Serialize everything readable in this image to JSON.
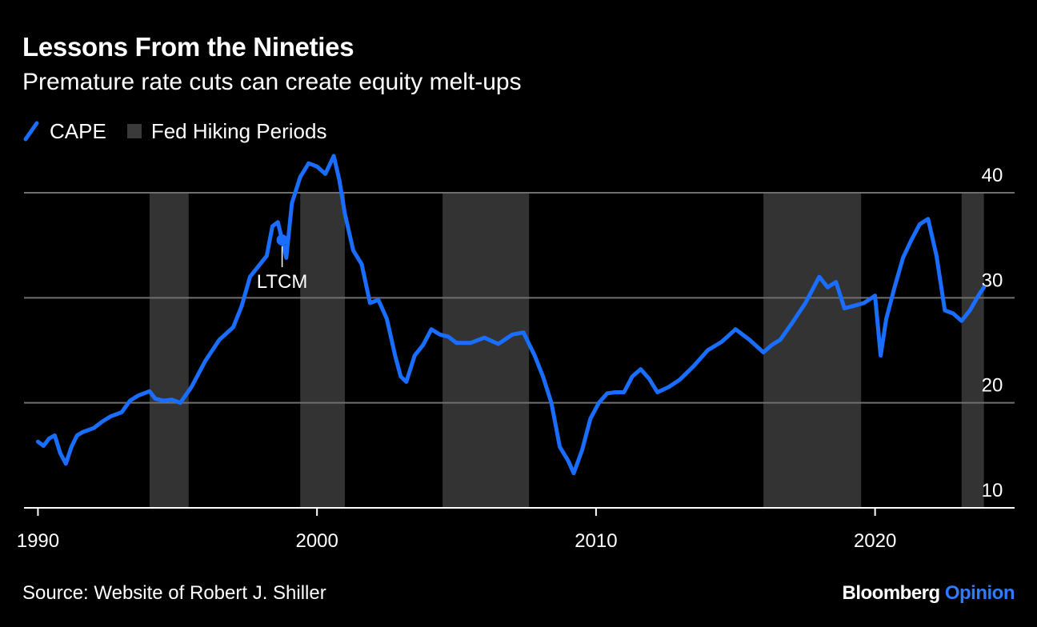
{
  "header": {
    "title": "Lessons From the Nineties",
    "subtitle": "Premature rate cuts can create equity melt-ups"
  },
  "legend": {
    "cape_label": "CAPE",
    "hiking_label": "Fed Hiking Periods"
  },
  "footer": {
    "source": "Source: Website of Robert J. Shiller",
    "brand": "Bloomberg",
    "brand_suffix": "Opinion"
  },
  "colors": {
    "series": "#1a6eff",
    "shade": "#333333",
    "grid": "#6f6f6f",
    "background": "#000000"
  },
  "chart_data": {
    "type": "line",
    "title": "Lessons From the Nineties",
    "subtitle": "Premature rate cuts can create equity melt-ups",
    "xlim": [
      1989.5,
      2025.0
    ],
    "ylim": [
      10,
      42
    ],
    "x_ticks": [
      1990,
      2000,
      2010,
      2020
    ],
    "y_ticks": [
      10,
      20,
      30,
      40
    ],
    "grid": "horizontal",
    "legend_position": "top-left",
    "shaded_periods": [
      [
        1994.0,
        1995.4
      ],
      [
        1999.4,
        2001.0
      ],
      [
        2004.5,
        2007.6
      ],
      [
        2016.0,
        2019.5
      ],
      [
        2023.1,
        2023.9
      ]
    ],
    "series": [
      {
        "name": "CAPE",
        "x": [
          1990.0,
          1990.2,
          1990.4,
          1990.6,
          1990.8,
          1991.0,
          1991.2,
          1991.4,
          1991.6,
          1992.0,
          1992.3,
          1992.6,
          1993.0,
          1993.3,
          1993.6,
          1994.0,
          1994.2,
          1994.5,
          1994.8,
          1995.1,
          1995.5,
          1996.0,
          1996.5,
          1997.0,
          1997.3,
          1997.6,
          1997.9,
          1998.2,
          1998.4,
          1998.6,
          1998.75,
          1998.9,
          1999.1,
          1999.4,
          1999.7,
          2000.0,
          2000.3,
          2000.6,
          2000.8,
          2001.0,
          2001.3,
          2001.6,
          2001.9,
          2002.2,
          2002.5,
          2002.8,
          2003.0,
          2003.2,
          2003.5,
          2003.8,
          2004.1,
          2004.4,
          2004.7,
          2005.0,
          2005.5,
          2006.0,
          2006.5,
          2007.0,
          2007.4,
          2007.8,
          2008.1,
          2008.4,
          2008.7,
          2009.0,
          2009.2,
          2009.5,
          2009.8,
          2010.1,
          2010.4,
          2010.7,
          2011.0,
          2011.3,
          2011.6,
          2011.9,
          2012.2,
          2012.6,
          2013.0,
          2013.5,
          2014.0,
          2014.5,
          2015.0,
          2015.5,
          2016.0,
          2016.3,
          2016.6,
          2017.0,
          2017.5,
          2018.0,
          2018.3,
          2018.6,
          2018.9,
          2019.2,
          2019.6,
          2020.0,
          2020.2,
          2020.4,
          2020.7,
          2021.0,
          2021.3,
          2021.6,
          2021.9,
          2022.2,
          2022.5,
          2022.8,
          2023.1,
          2023.4,
          2023.7,
          2023.9
        ],
        "y": [
          16.3,
          15.9,
          16.6,
          16.9,
          15.2,
          14.2,
          15.8,
          16.9,
          17.2,
          17.6,
          18.2,
          18.7,
          19.1,
          20.2,
          20.7,
          21.1,
          20.4,
          20.2,
          20.3,
          20.0,
          21.5,
          24.0,
          26.0,
          27.2,
          29.2,
          32.0,
          33.0,
          34.0,
          36.8,
          37.2,
          35.5,
          33.8,
          39.0,
          41.5,
          42.8,
          42.5,
          41.8,
          43.5,
          41.2,
          38.0,
          34.5,
          33.2,
          29.5,
          29.8,
          28.0,
          24.5,
          22.5,
          22.0,
          24.5,
          25.5,
          27.0,
          26.5,
          26.3,
          25.7,
          25.7,
          26.2,
          25.6,
          26.5,
          26.7,
          24.5,
          22.5,
          20.0,
          15.8,
          14.5,
          13.3,
          15.5,
          18.5,
          20.0,
          20.9,
          21.0,
          21.0,
          22.5,
          23.2,
          22.3,
          21.0,
          21.5,
          22.2,
          23.5,
          25.0,
          25.8,
          27.0,
          26.0,
          24.8,
          25.5,
          26.0,
          27.5,
          29.5,
          32.0,
          31.0,
          31.5,
          29.0,
          29.2,
          29.5,
          30.2,
          24.5,
          28.0,
          31.0,
          33.8,
          35.5,
          37.0,
          37.5,
          34.0,
          28.8,
          28.5,
          27.8,
          28.8,
          30.2,
          31.0
        ]
      }
    ],
    "annotations": [
      {
        "text": "LTCM",
        "x": 1998.75,
        "y": 35.5
      }
    ]
  }
}
